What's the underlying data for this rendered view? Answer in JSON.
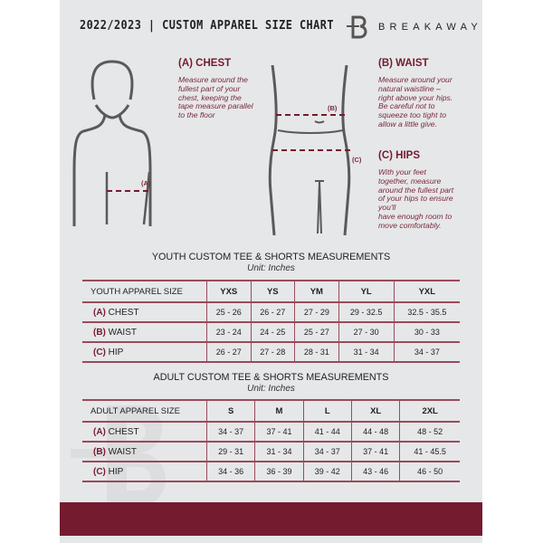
{
  "header": {
    "title": "2022/2023  |  CUSTOM APPAREL SIZE CHART",
    "brand": "BREAKAWAY",
    "logo_letter": "B"
  },
  "guides": {
    "chest": {
      "heading": "(A) CHEST",
      "text": [
        "Measure around the",
        "fullest part of your",
        "chest, keeping the",
        "tape measure parallel",
        "to the floor"
      ],
      "marker": "(A)"
    },
    "waist": {
      "heading": "(B) WAIST",
      "text": [
        "Measure around your",
        "natural waistline –",
        "right above your hips.",
        "Be careful not to",
        "squeeze too tight to",
        "allow a little give."
      ],
      "marker": "(B)"
    },
    "hips": {
      "heading": "(C) HIPS",
      "text": [
        "With your feet",
        "together, measure",
        "around the fullest part",
        "of your hips to ensure",
        "you'll",
        "have enough room to",
        "move comfortably."
      ],
      "marker": "(C)"
    }
  },
  "youth": {
    "title": "YOUTH CUSTOM TEE & SHORTS MEASUREMENTS",
    "unit": "Unit: Inches",
    "header": "YOUTH APPAREL SIZE",
    "sizes": [
      "YXS",
      "YS",
      "YM",
      "YL",
      "YXL"
    ],
    "rows": [
      {
        "code": "(A)",
        "label": "CHEST",
        "values": [
          "25 - 26",
          "26 - 27",
          "27 - 29",
          "29 - 32.5",
          "32.5 - 35.5"
        ]
      },
      {
        "code": "(B)",
        "label": "WAIST",
        "values": [
          "23 - 24",
          "24 - 25",
          "25 - 27",
          "27 - 30",
          "30 - 33"
        ]
      },
      {
        "code": "(C)",
        "label": "HIP",
        "values": [
          "26 - 27",
          "27 - 28",
          "28 - 31",
          "31 - 34",
          "34 - 37"
        ]
      }
    ]
  },
  "adult": {
    "title": "ADULT CUSTOM TEE & SHORTS MEASUREMENTS",
    "unit": "Unit: Inches",
    "header": "ADULT APPAREL SIZE",
    "sizes": [
      "S",
      "M",
      "L",
      "XL",
      "2XL"
    ],
    "rows": [
      {
        "code": "(A)",
        "label": "CHEST",
        "values": [
          "34 - 37",
          "37 - 41",
          "41 - 44",
          "44 - 48",
          "48 - 52"
        ]
      },
      {
        "code": "(B)",
        "label": "WAIST",
        "values": [
          "29 - 31",
          "31 - 34",
          "34 - 37",
          "37 - 41",
          "41 - 45.5"
        ]
      },
      {
        "code": "(C)",
        "label": "HIP",
        "values": [
          "34 - 36",
          "36 - 39",
          "39 - 42",
          "43 - 46",
          "46 - 50"
        ]
      }
    ]
  },
  "colors": {
    "accent": "#741b30",
    "panel": "#e6e7e8"
  }
}
